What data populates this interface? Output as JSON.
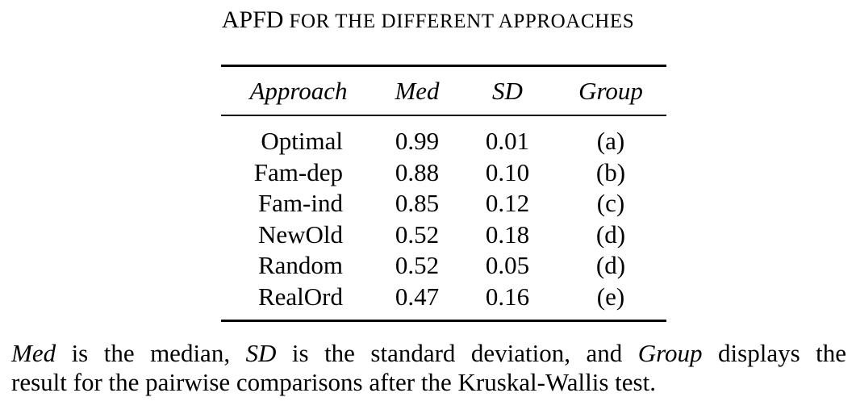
{
  "caption": {
    "first": "A",
    "rest_big": "PFD",
    "small_caps": "FOR THE DIFFERENT APPROACHES"
  },
  "table": {
    "headers": {
      "approach": "Approach",
      "med": "Med",
      "sd": "SD",
      "group": "Group"
    },
    "rows": [
      {
        "approach": "Optimal",
        "med": "0.99",
        "sd": "0.01",
        "group": "(a)"
      },
      {
        "approach": "Fam-dep",
        "med": "0.88",
        "sd": "0.10",
        "group": "(b)"
      },
      {
        "approach": "Fam-ind",
        "med": "0.85",
        "sd": "0.12",
        "group": "(c)"
      },
      {
        "approach": "NewOld",
        "med": "0.52",
        "sd": "0.18",
        "group": "(d)"
      },
      {
        "approach": "Random",
        "med": "0.52",
        "sd": "0.05",
        "group": "(d)"
      },
      {
        "approach": "RealOrd",
        "med": "0.47",
        "sd": "0.16",
        "group": "(e)"
      }
    ]
  },
  "note": {
    "term_med": "Med",
    "text_1": " is the median, ",
    "term_sd": "SD",
    "text_2": " is the standard deviation, and ",
    "term_group": "Group",
    "text_3": " displays the",
    "line_2": "result for the pairwise comparisons after the Kruskal-Wallis test."
  }
}
